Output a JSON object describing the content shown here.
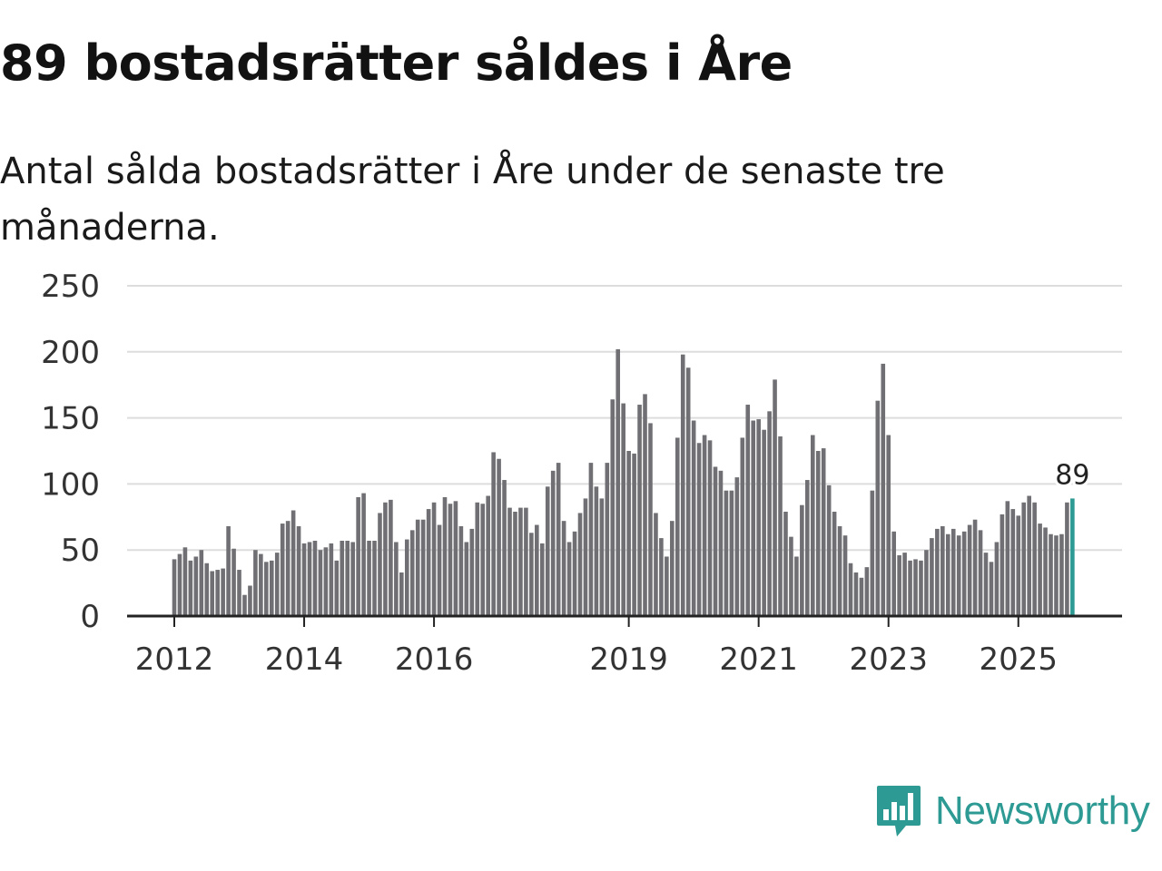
{
  "header": {
    "title": "89 bostadsrätter såldes i Åre",
    "subtitle": "Antal sålda bostadsrätter i Åre under de senaste tre månaderna."
  },
  "brand": {
    "name": "Newsworthy",
    "color": "#2e9a94"
  },
  "colors": {
    "bar": "#707074",
    "highlight": "#2e9a94",
    "grid": "#dddddd",
    "axis": "#222222"
  },
  "chart_data": {
    "type": "bar",
    "title": "89 bostadsrätter såldes i Åre",
    "xlabel": "",
    "ylabel": "",
    "ylim": [
      0,
      250
    ],
    "yticks": [
      "0",
      "50",
      "100",
      "150",
      "200",
      "250"
    ],
    "xticks": [
      "2012",
      "2014",
      "2016",
      "2019",
      "2021",
      "2023",
      "2025"
    ],
    "x_start": "2012-01",
    "frequency": "monthly",
    "highlight_label": "89",
    "values": [
      43,
      47,
      52,
      42,
      45,
      50,
      40,
      34,
      35,
      36,
      68,
      51,
      35,
      16,
      23,
      50,
      47,
      41,
      42,
      48,
      70,
      72,
      80,
      68,
      55,
      56,
      57,
      50,
      52,
      55,
      42,
      57,
      57,
      56,
      90,
      93,
      57,
      57,
      78,
      86,
      88,
      56,
      33,
      58,
      65,
      73,
      73,
      81,
      86,
      69,
      90,
      85,
      87,
      68,
      56,
      66,
      86,
      85,
      91,
      124,
      119,
      103,
      82,
      79,
      82,
      82,
      63,
      69,
      55,
      98,
      110,
      116,
      72,
      56,
      64,
      78,
      89,
      116,
      98,
      89,
      116,
      164,
      202,
      161,
      125,
      123,
      160,
      168,
      146,
      78,
      59,
      45,
      72,
      135,
      198,
      188,
      148,
      131,
      137,
      133,
      113,
      110,
      95,
      95,
      105,
      135,
      160,
      148,
      149,
      141,
      155,
      179,
      136,
      79,
      60,
      45,
      84,
      103,
      137,
      125,
      127,
      99,
      79,
      68,
      61,
      40,
      33,
      29,
      37,
      95,
      163,
      191,
      137,
      64,
      46,
      48,
      42,
      43,
      42,
      50,
      59,
      66,
      68,
      62,
      66,
      61,
      64,
      69,
      73,
      65,
      48,
      41,
      56,
      77,
      87,
      81,
      76,
      86,
      91,
      86,
      70,
      67,
      62,
      61,
      62,
      86,
      89
    ]
  }
}
